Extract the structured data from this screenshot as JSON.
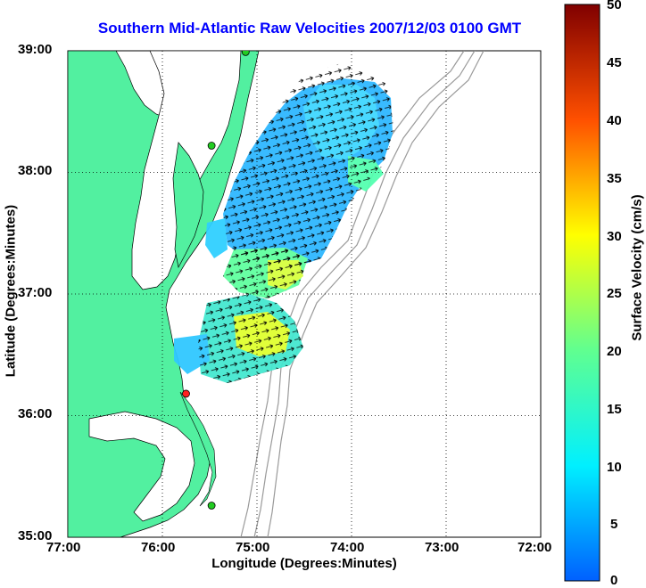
{
  "title": "Southern Mid-Atlantic Raw Velocities 2007/12/03 0100 GMT",
  "x_axis": {
    "label": "Longitude (Degrees:Minutes)",
    "ticks": [
      "77:00",
      "76:00",
      "75:00",
      "74:00",
      "73:00",
      "72:00"
    ]
  },
  "y_axis": {
    "label": "Latitude (Degrees:Minutes)",
    "ticks": [
      "39:00",
      "38:00",
      "37:00",
      "36:00",
      "35:00"
    ]
  },
  "colorbar": {
    "label": "Surface Velocity (cm/s)",
    "ticks": [
      "50",
      "45",
      "40",
      "35",
      "30",
      "25",
      "20",
      "15",
      "10",
      "5",
      "0"
    ],
    "min": 0,
    "max": 50
  },
  "map_extent": {
    "lon_min": -77,
    "lon_max": -72,
    "lat_min": 35,
    "lat_max": 39
  },
  "colors": {
    "land": "#52f0a0",
    "title": "#0000ff",
    "bathymetry": "#9a9a9a"
  },
  "stations": [
    {
      "lon": -75.12,
      "lat": 38.99,
      "color": "#22cc22"
    },
    {
      "lon": -75.48,
      "lat": 38.22,
      "color": "#22cc22"
    },
    {
      "lon": -75.75,
      "lat": 36.18,
      "color": "#ff2020"
    },
    {
      "lon": -75.48,
      "lat": 35.26,
      "color": "#22cc22"
    }
  ]
}
